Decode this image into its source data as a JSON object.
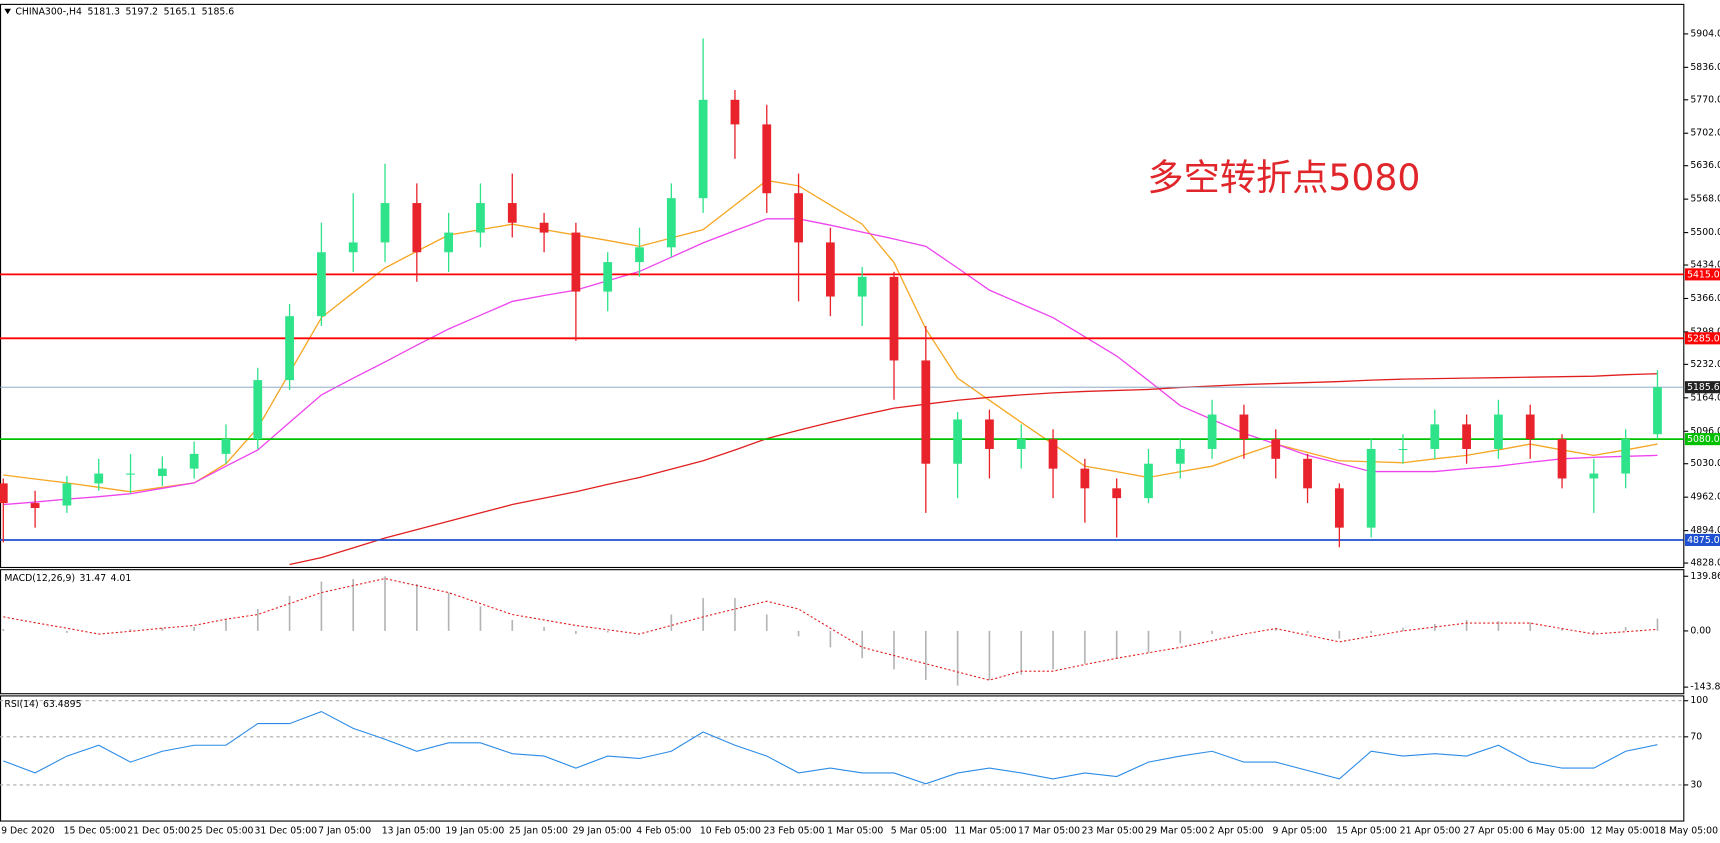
{
  "chart_data": [
    {
      "type": "candlestick",
      "title": "CHINA300-,H4",
      "quote": {
        "open": 5181.3,
        "high": 5197.2,
        "low": 5165.1,
        "close": 5185.6
      },
      "annotation": "多空转折点5080",
      "categories": [
        "9 Dec 2020",
        null,
        "15 Dec 05:00",
        null,
        "21 Dec 05:00",
        null,
        "25 Dec 05:00",
        null,
        "31 Dec 05:00",
        null,
        "7 Jan 05:00",
        null,
        "13 Jan 05:00",
        null,
        "19 Jan 05:00",
        null,
        "25 Jan 05:00",
        null,
        "29 Jan 05:00",
        null,
        "4 Feb 05:00",
        null,
        "10 Feb 05:00",
        null,
        "23 Feb 05:00",
        null,
        "1 Mar 05:00",
        null,
        "5 Mar 05:00",
        null,
        "11 Mar 05:00",
        null,
        "17 Mar 05:00",
        null,
        "23 Mar 05:00",
        null,
        "29 Mar 05:00",
        null,
        "2 Apr 05:00",
        null,
        "9 Apr 05:00",
        null,
        "15 Apr 05:00",
        null,
        "21 Apr 05:00",
        null,
        "27 Apr 05:00",
        null,
        "6 May 05:00",
        null,
        "12 May 05:00",
        null,
        "18 May 05:00"
      ],
      "open": [
        4990,
        4950,
        4945,
        4990,
        5010,
        5005,
        5020,
        5050,
        5080,
        5200,
        5330,
        5460,
        5480,
        5560,
        5460,
        5500,
        5560,
        5520,
        5500,
        5380,
        5440,
        5470,
        5570,
        5770,
        5720,
        5580,
        5480,
        5370,
        5410,
        5240,
        5030,
        5120,
        5060,
        5080,
        5020,
        4980,
        4960,
        5030,
        5060,
        5130,
        5080,
        5040,
        4980,
        4900,
        5060,
        5060,
        5110,
        5060,
        5130,
        5080,
        5000,
        5010,
        5090
      ],
      "high": [
        5000,
        4975,
        5005,
        5040,
        5050,
        5045,
        5075,
        5110,
        5225,
        5355,
        5520,
        5580,
        5640,
        5600,
        5540,
        5600,
        5620,
        5540,
        5520,
        5460,
        5510,
        5600,
        5895,
        5790,
        5760,
        5620,
        5510,
        5430,
        5420,
        5310,
        5135,
        5140,
        5110,
        5100,
        5040,
        5000,
        5060,
        5080,
        5160,
        5150,
        5100,
        5050,
        4990,
        5080,
        5090,
        5140,
        5130,
        5160,
        5150,
        5090,
        5040,
        5100,
        5220
      ],
      "low": [
        4870,
        4900,
        4930,
        4975,
        4970,
        4985,
        5000,
        5030,
        5060,
        5180,
        5310,
        5420,
        5440,
        5400,
        5420,
        5470,
        5490,
        5460,
        5280,
        5340,
        5410,
        5450,
        5540,
        5650,
        5540,
        5360,
        5330,
        5310,
        5160,
        4930,
        4960,
        5000,
        5020,
        4960,
        4910,
        4880,
        4950,
        5000,
        5040,
        5040,
        5000,
        4950,
        4860,
        4880,
        5030,
        5040,
        5030,
        5040,
        5040,
        4980,
        4930,
        4980,
        5080
      ],
      "close": [
        4950,
        4940,
        4990,
        5010,
        5010,
        5020,
        5050,
        5080,
        5200,
        5330,
        5460,
        5480,
        5560,
        5460,
        5500,
        5560,
        5520,
        5500,
        5380,
        5440,
        5470,
        5570,
        5770,
        5720,
        5580,
        5480,
        5370,
        5410,
        5240,
        5030,
        5120,
        5060,
        5080,
        5020,
        4980,
        4960,
        5030,
        5060,
        5130,
        5080,
        5040,
        4980,
        4900,
        5060,
        5060,
        5110,
        5060,
        5130,
        5080,
        5000,
        5010,
        5080,
        5185.6
      ],
      "up_color": "#2fe38a",
      "down_color": "#e8232b",
      "lines": [
        {
          "color": "#f5a623",
          "values": [
            5007,
            4999,
            4991,
            4982,
            4973,
            4982,
            4991,
            5030,
            5103,
            5215,
            5327,
            5378,
            5428,
            5462,
            5495,
            5506,
            5517,
            5506,
            5495,
            5484,
            5472,
            5489,
            5506,
            5556,
            5606,
            5595,
            5556,
            5517,
            5439,
            5304,
            5204,
            5159,
            5114,
            5070,
            5025,
            5014,
            5002,
            5014,
            5025,
            5048,
            5070,
            5053,
            5036,
            5034,
            5032,
            5040,
            5047,
            5058,
            5070,
            5058,
            5047,
            5058,
            5070
          ]
        },
        {
          "color": "#ee44ee",
          "values": [
            4947,
            4952,
            4958,
            4963,
            4969,
            4980,
            4991,
            5025,
            5058,
            5114,
            5170,
            5204,
            5237,
            5271,
            5304,
            5332,
            5360,
            5372,
            5383,
            5402,
            5421,
            5450,
            5479,
            5504,
            5528,
            5528,
            5515,
            5501,
            5487,
            5472,
            5428,
            5383,
            5355,
            5327,
            5288,
            5249,
            5199,
            5148,
            5120,
            5092,
            5070,
            5047,
            5031,
            5014,
            5014,
            5014,
            5020,
            5025,
            5033,
            5040,
            5043,
            5045,
            5047
          ]
        },
        {
          "color": "#e02020",
          "values": [
            null,
            null,
            null,
            null,
            null,
            null,
            null,
            null,
            null,
            4825,
            4839,
            4859,
            4879,
            4896,
            4913,
            4930,
            4947,
            4960,
            4973,
            4988,
            5002,
            5019,
            5036,
            5058,
            5081,
            5098,
            5114,
            5129,
            5143,
            5151,
            5159,
            5165,
            5170,
            5174,
            5177,
            5179,
            5181,
            5185,
            5188,
            5191,
            5193,
            5195,
            5197,
            5200,
            5202,
            5203,
            5204,
            5205,
            5206,
            5207,
            5208,
            5211,
            5213
          ]
        }
      ],
      "levels": [
        {
          "value": 5415,
          "label": "5415.0",
          "color": "#ff0000"
        },
        {
          "value": 5285,
          "label": "5285.0",
          "color": "#ff0000"
        },
        {
          "value": 5185.6,
          "label": "5185.6",
          "color": "#7f9fbf"
        },
        {
          "value": 5080,
          "label": "5080.0",
          "color": "#00c000"
        },
        {
          "value": 4875,
          "label": "4875.0",
          "color": "#1e50d0"
        }
      ],
      "ylim": [
        4819,
        5964
      ],
      "yticks": [
        {
          "value": 5904,
          "label": "5904.0"
        },
        {
          "value": 5836,
          "label": "5836.0"
        },
        {
          "value": 5770,
          "label": "5770.0"
        },
        {
          "value": 5702,
          "label": "5702.0"
        },
        {
          "value": 5636,
          "label": "5636.0"
        },
        {
          "value": 5568,
          "label": "5568.0"
        },
        {
          "value": 5500,
          "label": "5500.0"
        },
        {
          "value": 5434,
          "label": "5434.0"
        },
        {
          "value": 5366,
          "label": "5366.0"
        },
        {
          "value": 5298,
          "label": "5298.0"
        },
        {
          "value": 5232,
          "label": "5232.0"
        },
        {
          "value": 5164,
          "label": "5164.0"
        },
        {
          "value": 5096,
          "label": "5096.0"
        },
        {
          "value": 5030,
          "label": "5030.0"
        },
        {
          "value": 4962,
          "label": "4962.0"
        },
        {
          "value": 4894,
          "label": "4894.0"
        },
        {
          "value": 4828,
          "label": "4828.0"
        }
      ]
    },
    {
      "type": "macd",
      "title": "MACD(12,26,9)",
      "histogram": [
        5,
        0,
        -5,
        0,
        5,
        8,
        10,
        30,
        56,
        90,
        126,
        133,
        140,
        120,
        98,
        63,
        28,
        10,
        -8,
        -4,
        0,
        42,
        84,
        84,
        42,
        -14,
        -42,
        -70,
        -98,
        -126,
        -140,
        -126,
        -112,
        -98,
        -84,
        -70,
        -56,
        -32,
        -8,
        0,
        8,
        -6,
        -20,
        -6,
        8,
        18,
        28,
        25,
        22,
        7,
        -8,
        10,
        31.47
      ],
      "signal": [
        36,
        21,
        7,
        -8,
        -1,
        7,
        14,
        30,
        42,
        70,
        98,
        116,
        134,
        116,
        98,
        70,
        42,
        28,
        14,
        3,
        -8,
        14,
        36,
        56,
        76,
        56,
        7,
        -42,
        -63,
        -84,
        -105,
        -126,
        -103,
        -103,
        -86,
        -70,
        -56,
        -42,
        -25,
        -8,
        6,
        -11,
        -28,
        -14,
        0,
        10,
        20,
        20,
        20,
        6,
        -8,
        -2,
        4.01
      ],
      "histogram_color": "#b4b4b4",
      "signal_color": "#e02020",
      "ylim": [
        -160.7,
        156.7
      ],
      "yticks": [
        139.86,
        {
          "value": 0,
          "label": "0.00"
        },
        -143.82
      ]
    },
    {
      "type": "rsi",
      "title": "RSI(14)",
      "values": [
        50,
        40,
        54,
        63,
        49,
        58,
        63,
        63,
        81,
        81,
        91,
        77,
        68,
        58,
        65,
        65,
        56,
        54,
        44,
        54,
        52,
        58,
        74,
        63,
        54,
        40,
        44,
        40,
        40,
        31,
        40,
        44,
        40,
        35,
        40,
        37,
        49,
        54,
        58,
        49,
        49,
        42,
        35,
        58,
        54,
        56,
        54,
        63,
        49,
        44,
        44,
        58,
        63.4895
      ],
      "color": "#2b8be6",
      "ylim": [
        0,
        104
      ],
      "yticks": [
        100,
        70,
        30
      ],
      "grid": true
    }
  ]
}
